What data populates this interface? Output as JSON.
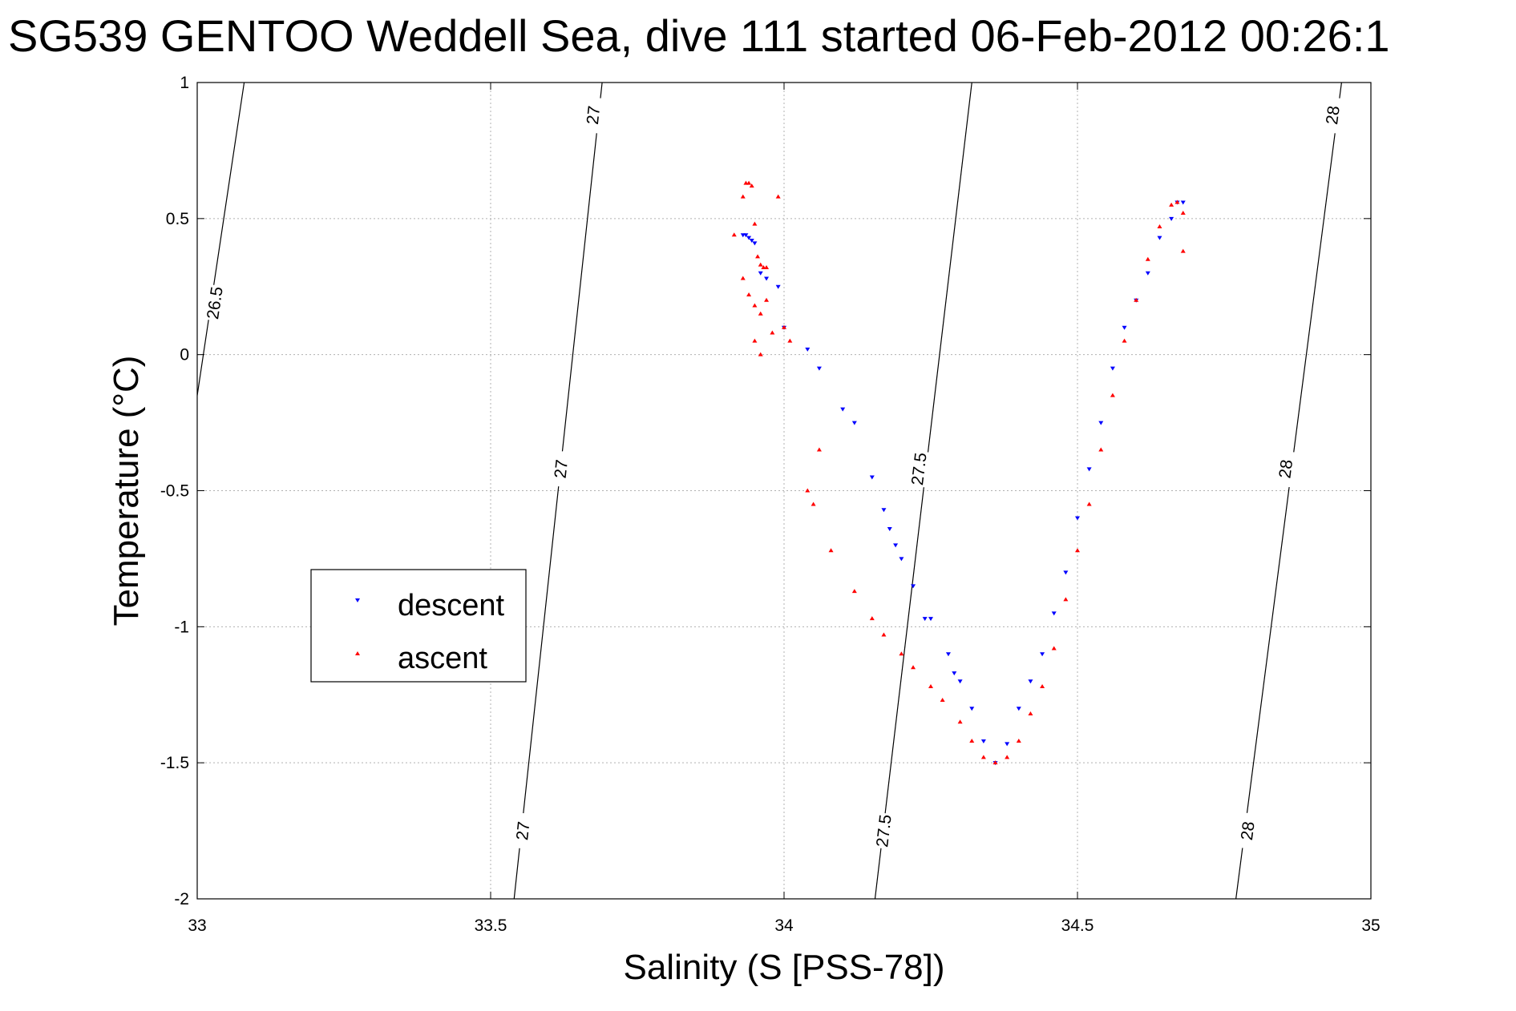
{
  "chart_data": {
    "type": "scatter",
    "title": "SG539 GENTOO Weddell Sea, dive 111 started 06-Feb-2012 00:26:1",
    "xlabel": "Salinity (S [PSS-78])",
    "ylabel": "Temperature (°C)",
    "xlim": [
      33,
      35
    ],
    "ylim": [
      -2,
      1
    ],
    "xticks": [
      "33",
      "33.5",
      "34",
      "34.5",
      "35"
    ],
    "yticks": [
      "1",
      "0.5",
      "0",
      "-0.5",
      "-1",
      "-1.5",
      "-2"
    ],
    "grid": true,
    "legend": {
      "position": "middle-left",
      "entries": [
        "descent",
        "ascent"
      ]
    },
    "colors": {
      "descent": "#0000ff",
      "ascent": "#ff0000",
      "contour": "#000000",
      "grid": "#b0b0b0"
    },
    "contours": [
      {
        "level": "26.5",
        "points": [
          [
            33.0,
            -0.15
          ],
          [
            33.08,
            1.0
          ]
        ],
        "labels": [
          {
            "s": 33.03,
            "t": 0.19
          }
        ]
      },
      {
        "level": "27",
        "points": [
          [
            33.54,
            -2.0
          ],
          [
            33.69,
            1.0
          ]
        ],
        "labels": [
          {
            "s": 33.555,
            "t": -1.75
          },
          {
            "s": 33.62,
            "t": -0.42
          },
          {
            "s": 33.675,
            "t": 0.88
          }
        ]
      },
      {
        "level": "27.5",
        "points": [
          [
            34.155,
            -2.0
          ],
          [
            34.32,
            1.0
          ]
        ],
        "labels": [
          {
            "s": 34.17,
            "t": -1.75
          },
          {
            "s": 34.23,
            "t": -0.42
          }
        ]
      },
      {
        "level": "28",
        "points": [
          [
            34.77,
            -2.0
          ],
          [
            34.95,
            1.0
          ]
        ],
        "labels": [
          {
            "s": 34.79,
            "t": -1.75
          },
          {
            "s": 34.855,
            "t": -0.42
          },
          {
            "s": 34.935,
            "t": 0.88
          }
        ]
      }
    ],
    "series": [
      {
        "name": "descent",
        "marker": "triangle-down",
        "x": [
          33.93,
          33.935,
          33.94,
          33.945,
          33.95,
          33.96,
          33.97,
          33.99,
          34.0,
          34.04,
          34.06,
          34.1,
          34.12,
          34.15,
          34.17,
          34.18,
          34.19,
          34.2,
          34.22,
          34.24,
          34.25,
          34.28,
          34.29,
          34.3,
          34.32,
          34.34,
          34.36,
          34.38,
          34.4,
          34.42,
          34.44,
          34.46,
          34.48,
          34.5,
          34.52,
          34.54,
          34.56,
          34.58,
          34.6,
          34.62,
          34.64,
          34.66,
          34.67,
          34.68
        ],
        "y": [
          0.44,
          0.44,
          0.43,
          0.42,
          0.41,
          0.3,
          0.28,
          0.25,
          0.1,
          0.02,
          -0.05,
          -0.2,
          -0.25,
          -0.45,
          -0.57,
          -0.64,
          -0.7,
          -0.75,
          -0.85,
          -0.97,
          -0.97,
          -1.1,
          -1.17,
          -1.2,
          -1.3,
          -1.42,
          -1.5,
          -1.43,
          -1.3,
          -1.2,
          -1.1,
          -0.95,
          -0.8,
          -0.6,
          -0.42,
          -0.25,
          -0.05,
          0.1,
          0.2,
          0.3,
          0.43,
          0.5,
          0.56,
          0.56
        ]
      },
      {
        "name": "ascent",
        "marker": "triangle-up",
        "x": [
          33.915,
          33.93,
          33.935,
          33.94,
          33.945,
          33.95,
          33.955,
          33.96,
          33.965,
          33.97,
          33.93,
          33.94,
          33.95,
          33.96,
          33.97,
          33.95,
          33.96,
          33.98,
          33.99,
          34.0,
          34.01,
          34.04,
          34.05,
          34.06,
          34.08,
          34.12,
          34.15,
          34.17,
          34.2,
          34.22,
          34.25,
          34.27,
          34.3,
          34.32,
          34.34,
          34.36,
          34.38,
          34.4,
          34.42,
          34.44,
          34.46,
          34.48,
          34.5,
          34.52,
          34.54,
          34.56,
          34.58,
          34.6,
          34.62,
          34.64,
          34.66,
          34.67,
          34.68,
          34.68
        ],
        "y": [
          0.44,
          0.58,
          0.63,
          0.63,
          0.62,
          0.48,
          0.36,
          0.33,
          0.32,
          0.32,
          0.28,
          0.22,
          0.18,
          0.15,
          0.2,
          0.05,
          0.0,
          0.08,
          0.58,
          0.1,
          0.05,
          -0.5,
          -0.55,
          -0.35,
          -0.72,
          -0.87,
          -0.97,
          -1.03,
          -1.1,
          -1.15,
          -1.22,
          -1.27,
          -1.35,
          -1.42,
          -1.48,
          -1.5,
          -1.48,
          -1.42,
          -1.32,
          -1.22,
          -1.08,
          -0.9,
          -0.72,
          -0.55,
          -0.35,
          -0.15,
          0.05,
          0.2,
          0.35,
          0.47,
          0.55,
          0.56,
          0.52,
          0.38
        ]
      }
    ]
  }
}
